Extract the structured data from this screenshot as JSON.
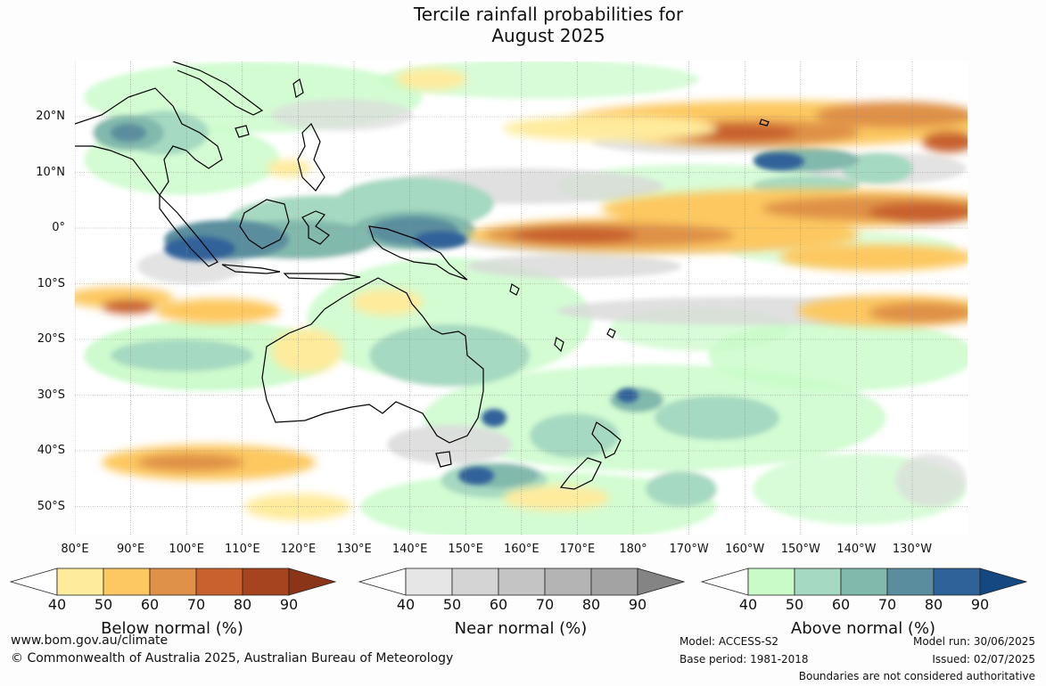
{
  "title": {
    "line1": "Tercile rainfall probabilities for",
    "line2": "August 2025"
  },
  "map": {
    "lat_labels": [
      "20°N",
      "10°N",
      "0°",
      "10°S",
      "20°S",
      "30°S",
      "40°S",
      "50°S"
    ],
    "lon_labels": [
      "80°E",
      "90°E",
      "100°E",
      "110°E",
      "120°E",
      "130°E",
      "140°E",
      "150°E",
      "160°E",
      "170°E",
      "180°",
      "170°W",
      "160°W",
      "150°W",
      "140°W",
      "130°W"
    ],
    "boundary_note": "Boundaries are not considered authoritative"
  },
  "legends": [
    {
      "title": "Below normal (%)",
      "ticks": [
        "40",
        "50",
        "60",
        "70",
        "80",
        "90"
      ],
      "colors": [
        "#ffeb9c",
        "#fdc861",
        "#df9147",
        "#c8612e",
        "#a64420",
        "#8a3418"
      ]
    },
    {
      "title": "Near normal (%)",
      "ticks": [
        "40",
        "50",
        "60",
        "70",
        "80",
        "90"
      ],
      "colors": [
        "#e6e6e6",
        "#d4d4d4",
        "#c4c4c4",
        "#b4b4b4",
        "#a3a3a3",
        "#848484"
      ]
    },
    {
      "title": "Above normal (%)",
      "ticks": [
        "40",
        "50",
        "60",
        "70",
        "80",
        "90"
      ],
      "colors": [
        "#c8fbc8",
        "#a6d9c1",
        "#82b9ad",
        "#5a8e9e",
        "#30629a",
        "#154780"
      ]
    }
  ],
  "footer": {
    "website": "www.bom.gov.au/climate",
    "copyright": "© Commonwealth of Australia 2025, Australian Bureau of Meteorology",
    "model": "Model: ACCESS-S2",
    "base_period": "Base period: 1981-2018",
    "model_run": "Model run: 30/06/2025",
    "issued": "Issued: 02/07/2025"
  }
}
